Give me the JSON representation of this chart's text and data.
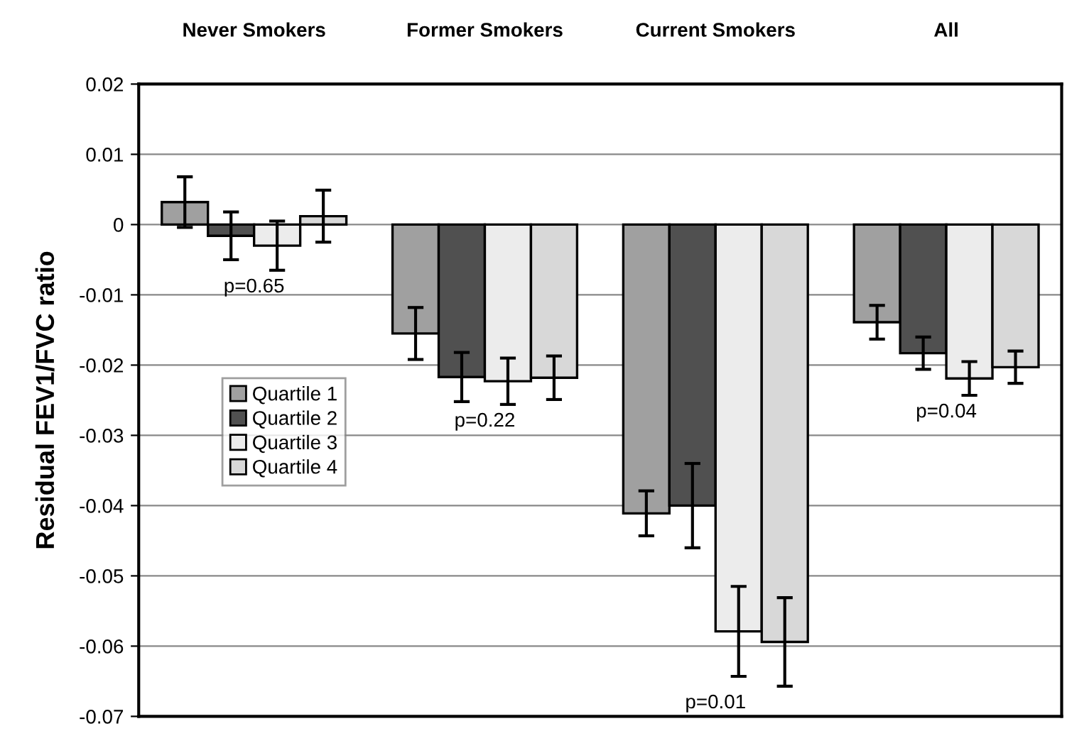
{
  "chart_data": {
    "type": "bar",
    "categories": [
      "Never Smokers",
      "Former Smokers",
      "Current Smokers",
      "All"
    ],
    "ylabel": "Residual FEV1/FVC ratio",
    "series": [
      {
        "name": "Quartile 1",
        "color": "#a0a0a0",
        "values": [
          0.0032,
          -0.0155,
          -0.0411,
          -0.0139
        ],
        "errors": [
          0.0036,
          0.0037,
          0.0032,
          0.0024
        ]
      },
      {
        "name": "Quartile 2",
        "color": "#505050",
        "values": [
          -0.0016,
          -0.0217,
          -0.04,
          -0.0183
        ],
        "errors": [
          0.0034,
          0.0035,
          0.006,
          0.0023
        ]
      },
      {
        "name": "Quartile 3",
        "color": "#ececec",
        "values": [
          -0.003,
          -0.0223,
          -0.0579,
          -0.0219
        ],
        "errors": [
          0.0035,
          0.0033,
          0.0064,
          0.0024
        ]
      },
      {
        "name": "Quartile 4",
        "color": "#d8d8d8",
        "values": [
          0.0012,
          -0.0218,
          -0.0594,
          -0.0203
        ],
        "errors": [
          0.0037,
          0.0031,
          0.0063,
          0.0023
        ]
      }
    ],
    "ylim": [
      -0.07,
      0.02
    ],
    "yticks": [
      {
        "value": -0.07,
        "label": "-0.07"
      },
      {
        "value": -0.06,
        "label": "-0.06"
      },
      {
        "value": -0.05,
        "label": "-0.05"
      },
      {
        "value": -0.04,
        "label": "-0.04"
      },
      {
        "value": -0.03,
        "label": "-0.03"
      },
      {
        "value": -0.02,
        "label": "-0.02"
      },
      {
        "value": -0.01,
        "label": "-0.01"
      },
      {
        "value": 0,
        "label": "0"
      },
      {
        "value": 0.01,
        "label": "0.01"
      },
      {
        "value": 0.02,
        "label": "0.02"
      }
    ],
    "annotations": [
      "p=0.65",
      "p=0.22",
      "p=0.01",
      "p=0.04"
    ],
    "grid": "y",
    "legend": "left"
  }
}
